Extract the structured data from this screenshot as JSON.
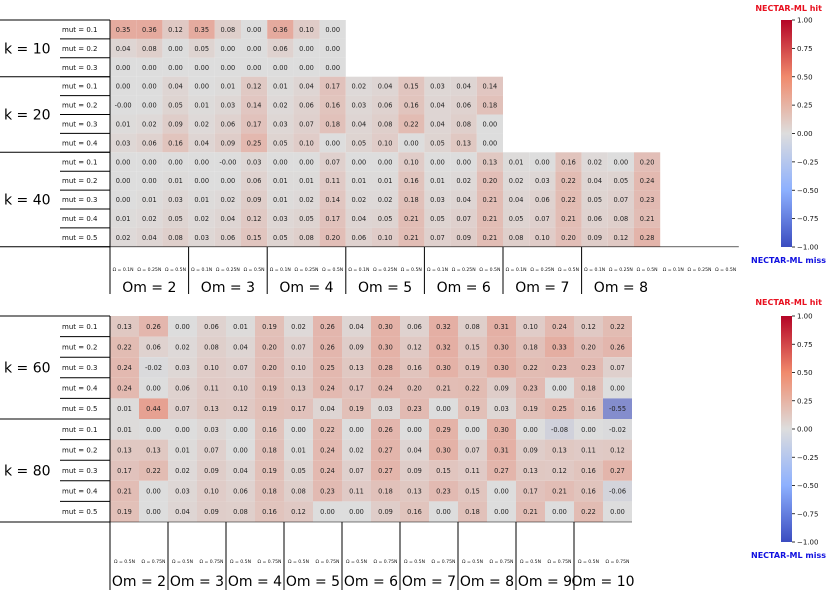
{
  "chart_data": [
    {
      "type": "heatmap",
      "title": "",
      "colorbar": {
        "top_label": "NECTAR-ML hit",
        "bottom_label": "NECTAR-ML miss",
        "ticks": [
          "1.00",
          "0.75",
          "0.50",
          "0.25",
          "0.00",
          "−0.25",
          "−0.50",
          "−0.75",
          "−1.00"
        ],
        "range": [
          -1,
          1
        ],
        "colors": {
          "neg": "#3b4cc0",
          "mid": "#dddddd",
          "pos": "#b40426",
          "hit_label": "#e8101f",
          "miss_label": "#1010e0"
        }
      },
      "k_groups": [
        {
          "label": "k = 10",
          "rows": [
            "mut = 0.1",
            "mut = 0.2",
            "mut = 0.3"
          ],
          "ncols": 12
        },
        {
          "label": "k = 20",
          "rows": [
            "mut = 0.1",
            "mut = 0.2",
            "mut = 0.3",
            "mut = 0.4"
          ],
          "ncols": 18
        },
        {
          "label": "k = 40",
          "rows": [
            "mut = 0.1",
            "mut = 0.2",
            "mut = 0.3",
            "mut = 0.4",
            "mut = 0.5"
          ],
          "ncols": 24
        }
      ],
      "col_labels": [
        "Ω = 0.1N",
        "Ω = 0.25N",
        "Ω = 0.5N",
        "Ω = 0.1N",
        "Ω = 0.25N",
        "Ω = 0.5N",
        "Ω = 0.1N",
        "Ω = 0.25N",
        "Ω = 0.5N",
        "Ω = 0.1N",
        "Ω = 0.25N",
        "Ω = 0.5N",
        "Ω = 0.1N",
        "Ω = 0.25N",
        "Ω = 0.5N",
        "Ω = 0.1N",
        "Ω = 0.25N",
        "Ω = 0.5N",
        "Ω = 0.1N",
        "Ω = 0.25N",
        "Ω = 0.5N",
        "Ω = 0.1N",
        "Ω = 0.25N",
        "Ω = 0.5N"
      ],
      "om_labels": [
        "Om = 2",
        "Om = 3",
        "Om = 4",
        "Om = 5",
        "Om = 6",
        "Om = 7",
        "Om = 8"
      ],
      "values": [
        [
          0.35,
          0.36,
          0.12,
          0.35,
          0.08,
          0.0,
          0.36,
          0.1,
          0.0
        ],
        [
          0.04,
          0.08,
          0.0,
          0.05,
          0.0,
          0.0,
          0.06,
          0.0,
          0.0
        ],
        [
          0.0,
          0.0,
          0.0,
          0.0,
          0.0,
          0.0,
          0.0,
          0.0,
          0.0
        ],
        [
          0.0,
          0.0,
          0.04,
          0.0,
          0.01,
          0.12,
          0.01,
          0.04,
          0.17,
          0.02,
          0.04,
          0.15,
          0.03,
          0.04,
          0.14
        ],
        [
          -0.0,
          0.0,
          0.05,
          0.01,
          0.03,
          0.14,
          0.02,
          0.06,
          0.16,
          0.03,
          0.06,
          0.16,
          0.04,
          0.06,
          0.18
        ],
        [
          0.01,
          0.02,
          0.09,
          0.02,
          0.06,
          0.17,
          0.03,
          0.07,
          0.18,
          0.04,
          0.08,
          0.22,
          0.04,
          0.08,
          0.0
        ],
        [
          0.03,
          0.06,
          0.16,
          0.04,
          0.09,
          0.25,
          0.05,
          0.1,
          0.0,
          0.05,
          0.1,
          0.0,
          0.05,
          0.13,
          0.0
        ],
        [
          0.0,
          0.0,
          0.0,
          0.0,
          -0.0,
          0.03,
          0.0,
          0.0,
          0.07,
          0.0,
          0.0,
          0.1,
          0.0,
          0.0,
          0.13,
          0.01,
          0.0,
          0.16,
          0.02,
          0.0,
          0.2
        ],
        [
          0.0,
          0.0,
          0.01,
          0.0,
          0.0,
          0.06,
          0.01,
          0.01,
          0.11,
          0.01,
          0.01,
          0.16,
          0.01,
          0.02,
          0.2,
          0.02,
          0.03,
          0.22,
          0.04,
          0.05,
          0.24
        ],
        [
          0.0,
          0.01,
          0.03,
          0.01,
          0.02,
          0.09,
          0.01,
          0.02,
          0.14,
          0.02,
          0.02,
          0.18,
          0.03,
          0.04,
          0.21,
          0.04,
          0.06,
          0.22,
          0.05,
          0.07,
          0.23
        ],
        [
          0.01,
          0.02,
          0.05,
          0.02,
          0.04,
          0.12,
          0.03,
          0.05,
          0.17,
          0.04,
          0.05,
          0.21,
          0.05,
          0.07,
          0.21,
          0.05,
          0.07,
          0.21,
          0.06,
          0.08,
          0.21
        ],
        [
          0.02,
          0.04,
          0.08,
          0.03,
          0.06,
          0.15,
          0.05,
          0.08,
          0.2,
          0.06,
          0.1,
          0.21,
          0.07,
          0.09,
          0.21,
          0.08,
          0.1,
          0.2,
          0.09,
          0.12,
          0.28
        ]
      ]
    },
    {
      "type": "heatmap",
      "title": "",
      "colorbar": {
        "top_label": "NECTAR-ML hit",
        "bottom_label": "NECTAR-ML miss",
        "ticks": [
          "1.00",
          "0.75",
          "0.50",
          "0.25",
          "0.00",
          "−0.25",
          "−0.50",
          "−0.75",
          "−1.00"
        ],
        "range": [
          -1,
          1
        ]
      },
      "k_groups": [
        {
          "label": "k = 60",
          "rows": [
            "mut = 0.1",
            "mut = 0.2",
            "mut = 0.3",
            "mut = 0.4",
            "mut = 0.5"
          ]
        },
        {
          "label": "k = 80",
          "rows": [
            "mut = 0.1",
            "mut = 0.2",
            "mut = 0.3",
            "mut = 0.4",
            "mut = 0.5"
          ]
        }
      ],
      "col_labels": [
        "Ω = 0.5N",
        "Ω = 0.75N",
        "Ω = 0.5N",
        "Ω = 0.75N",
        "Ω = 0.5N",
        "Ω = 0.75N",
        "Ω = 0.5N",
        "Ω = 0.75N",
        "Ω = 0.5N",
        "Ω = 0.75N",
        "Ω = 0.5N",
        "Ω = 0.75N",
        "Ω = 0.5N",
        "Ω = 0.75N",
        "Ω = 0.5N",
        "Ω = 0.75N",
        "Ω = 0.5N",
        "Ω = 0.75N"
      ],
      "om_labels": [
        "Om = 2",
        "Om = 3",
        "Om = 4",
        "Om = 5",
        "Om = 6",
        "Om = 7",
        "Om = 8",
        "Om = 9",
        "Om = 10"
      ],
      "values": [
        [
          0.13,
          0.26,
          0.0,
          0.06,
          0.01,
          0.19,
          0.02,
          0.26,
          0.04,
          0.3,
          0.06,
          0.32,
          0.08,
          0.31,
          0.1,
          0.24,
          0.12,
          0.22
        ],
        [
          0.22,
          0.06,
          0.02,
          0.08,
          0.04,
          0.2,
          0.07,
          0.26,
          0.09,
          0.3,
          0.12,
          0.32,
          0.15,
          0.3,
          0.18,
          0.33,
          0.2,
          0.26
        ],
        [
          0.24,
          -0.02,
          0.03,
          0.1,
          0.07,
          0.2,
          0.1,
          0.25,
          0.13,
          0.28,
          0.16,
          0.3,
          0.19,
          0.3,
          0.22,
          0.23,
          0.23,
          0.07
        ],
        [
          0.24,
          0.0,
          0.06,
          0.11,
          0.1,
          0.19,
          0.13,
          0.24,
          0.17,
          0.24,
          0.2,
          0.21,
          0.22,
          0.09,
          0.23,
          0.0,
          0.18,
          0.0
        ],
        [
          0.01,
          0.44,
          0.07,
          0.13,
          0.12,
          0.19,
          0.17,
          0.04,
          0.19,
          0.03,
          0.23,
          0.0,
          0.19,
          0.03,
          0.19,
          0.25,
          0.16,
          -0.55
        ],
        [
          0.01,
          0.0,
          0.0,
          0.03,
          0.0,
          0.16,
          0.0,
          0.22,
          0.0,
          0.26,
          0.0,
          0.29,
          0.0,
          0.3,
          0.0,
          -0.08,
          0.0,
          -0.02
        ],
        [
          0.13,
          0.13,
          0.01,
          0.07,
          0.0,
          0.18,
          0.01,
          0.24,
          0.02,
          0.27,
          0.04,
          0.3,
          0.07,
          0.31,
          0.09,
          0.13,
          0.11,
          0.12
        ],
        [
          0.17,
          0.22,
          0.02,
          0.09,
          0.04,
          0.19,
          0.05,
          0.24,
          0.07,
          0.27,
          0.09,
          0.15,
          0.11,
          0.27,
          0.13,
          0.12,
          0.16,
          0.27
        ],
        [
          0.21,
          0.0,
          0.03,
          0.1,
          0.06,
          0.18,
          0.08,
          0.23,
          0.11,
          0.18,
          0.13,
          0.23,
          0.15,
          0.0,
          0.17,
          0.21,
          0.16,
          -0.06
        ],
        [
          0.19,
          0.0,
          0.04,
          0.09,
          0.08,
          0.16,
          0.12,
          0.0,
          0.0,
          0.09,
          0.16,
          0.0,
          0.18,
          0.0,
          0.21,
          0.0,
          0.22,
          0.0
        ]
      ]
    }
  ]
}
